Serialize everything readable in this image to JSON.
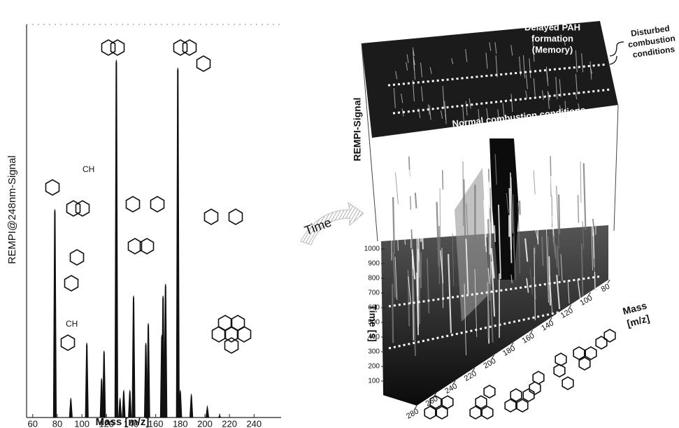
{
  "chart_data": [
    {
      "type": "stem",
      "xlabel": "Mass [m/z]",
      "ylabel": "REMPI@248nm-Signal",
      "x": [
        78,
        91,
        104,
        116,
        118,
        128,
        131,
        134,
        139,
        142,
        152,
        154,
        165,
        166,
        168,
        178,
        180,
        189,
        202,
        212
      ],
      "values": [
        53,
        5,
        19,
        10,
        17,
        91,
        5,
        7,
        7,
        31,
        19,
        24,
        21,
        31,
        34,
        89,
        7,
        6,
        3,
        1
      ],
      "color": "#111111",
      "xlim": [
        55,
        262
      ],
      "xticks": [
        60,
        80,
        100,
        120,
        140,
        160,
        180,
        200,
        220,
        240
      ],
      "ylim": [
        0,
        100
      ],
      "annotations": [
        "CH",
        "CH"
      ]
    },
    {
      "type": "surface3d",
      "xlabel_lines": [
        "Mass",
        "[m/z]"
      ],
      "ylabel": "Time [s]",
      "zlabel": "REMPI-Signal",
      "xlim": [
        280,
        80
      ],
      "xticks": [
        280,
        260,
        240,
        220,
        200,
        180,
        160,
        140,
        120,
        100,
        80
      ],
      "ylim": [
        0,
        1000
      ],
      "yticks": [
        100,
        200,
        300,
        400,
        500,
        600,
        700,
        800,
        900,
        1000
      ],
      "arrow_label": "Time",
      "memory_lines": [
        "Delayed PAH",
        "formation",
        "(Memory)"
      ],
      "disturbed_lines": [
        "Disturbed",
        "combustion",
        "conditions"
      ],
      "normal_label": "Normal combustion conditions"
    }
  ]
}
